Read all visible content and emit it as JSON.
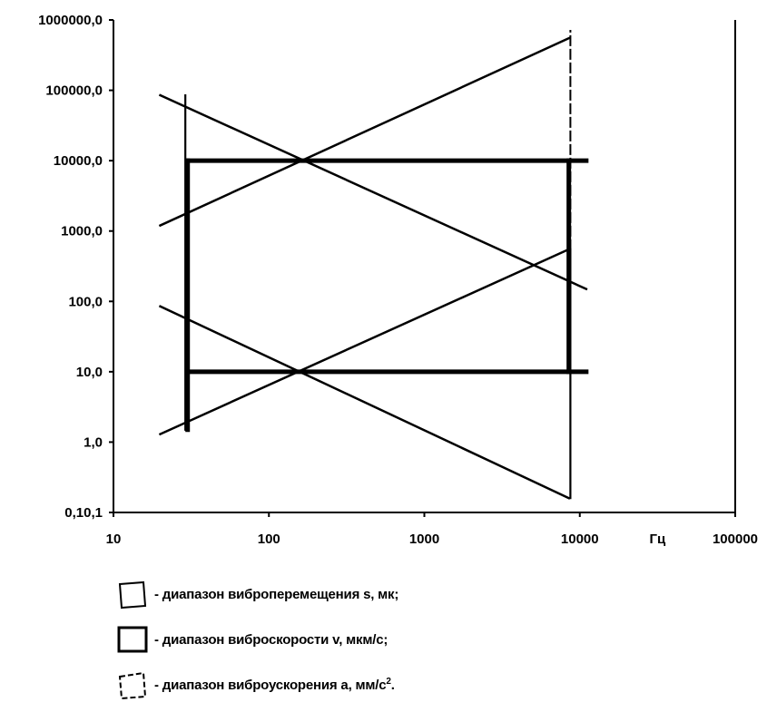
{
  "chart_data": {
    "type": "line",
    "scale": {
      "x": "log",
      "y": "log"
    },
    "xlim": [
      10,
      100000
    ],
    "ylim": [
      0.1,
      1000000
    ],
    "x_ticks": [
      "10",
      "100",
      "1000",
      "10000",
      "100000"
    ],
    "y_ticks": [
      "0,10,1",
      "1,0",
      "10,0",
      "100,0",
      "1000,0",
      "10000,0",
      "100000,0",
      "1000000,0"
    ],
    "x_unit": "Гц",
    "series": [
      {
        "key": "s",
        "style": "thin-solid",
        "points": [
          [
            20,
            85
          ],
          [
            8500,
            0.16
          ]
        ]
      },
      {
        "key": "s",
        "style": "thin-solid",
        "points": [
          [
            20,
            85000
          ],
          [
            11000,
            150
          ]
        ]
      },
      {
        "key": "s",
        "style": "thin-solid",
        "points": [
          [
            20,
            1.3
          ],
          [
            8500,
            550
          ]
        ]
      },
      {
        "key": "s",
        "style": "thin-solid",
        "points": [
          [
            20,
            1200
          ],
          [
            8500,
            550000
          ]
        ]
      },
      {
        "key": "v",
        "style": "thick",
        "points": [
          [
            30,
            10
          ],
          [
            11000,
            10
          ]
        ]
      },
      {
        "key": "v",
        "style": "thick",
        "points": [
          [
            30,
            10000
          ],
          [
            11000,
            10000
          ]
        ]
      },
      {
        "key": "v",
        "style": "thick",
        "points": [
          [
            30,
            1.5
          ],
          [
            30,
            10000
          ]
        ]
      },
      {
        "key": "v",
        "style": "thick",
        "points": [
          [
            8500,
            10
          ],
          [
            8500,
            10000
          ]
        ]
      },
      {
        "key": "a",
        "style": "thin",
        "points": [
          [
            29,
            1.5
          ],
          [
            29,
            85000
          ]
        ]
      },
      {
        "key": "a",
        "style": "thin",
        "points": [
          [
            8700,
            0.16
          ],
          [
            8700,
            550
          ]
        ]
      },
      {
        "key": "a",
        "style": "dashed",
        "points": [
          [
            8700,
            550
          ],
          [
            8700,
            700000
          ]
        ]
      }
    ],
    "grid": false,
    "legend": {
      "position": "bottom",
      "items": [
        {
          "icon": "solid-parallelogram",
          "label": "- диапазон виброперемещения s, мк;"
        },
        {
          "icon": "thick-rectangle",
          "label": "- диапазон виброскорости v, мкм/с;"
        },
        {
          "icon": "dashed-parallelogram",
          "label": "- диапазон виброускорения a, мм/с², ."
        }
      ]
    }
  },
  "legend_labels": {
    "s": "- диапазон виброперемещения s, мк;",
    "v": "- диапазон виброскорости v, мкм/с;",
    "a_main": "- диапазон виброускорения a, мм/с",
    "a_sup": "2",
    "a_end": "."
  }
}
